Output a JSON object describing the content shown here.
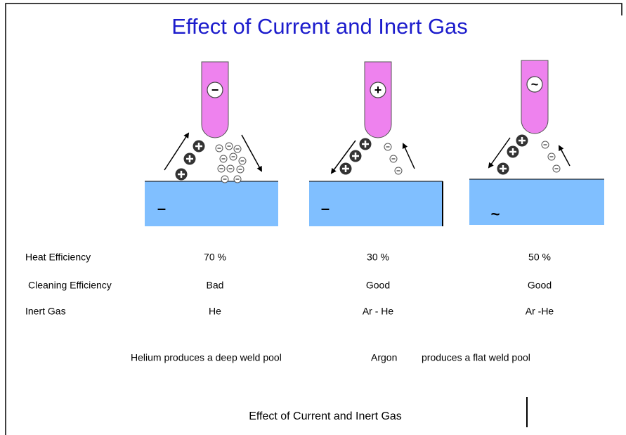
{
  "title": "Effect of Current and Inert Gas",
  "diagrams": [
    {
      "electrode_symbol": "−",
      "plate_symbol": "–"
    },
    {
      "electrode_symbol": "+",
      "plate_symbol": "–"
    },
    {
      "electrode_symbol": "~",
      "plate_symbol": "~"
    }
  ],
  "table": {
    "rows": [
      [
        "Heat Efficiency",
        "70 %",
        "30 %",
        "50 %"
      ],
      [
        "Cleaning Efficiency",
        "Bad",
        "Good",
        "Good"
      ],
      [
        "Inert Gas",
        "He",
        "Ar - He",
        "Ar -He"
      ]
    ]
  },
  "notes": [
    "Helium produces a deep weld pool",
    "Argon",
    "produces a flat weld pool"
  ],
  "footer": "Effect of Current and Inert Gas"
}
